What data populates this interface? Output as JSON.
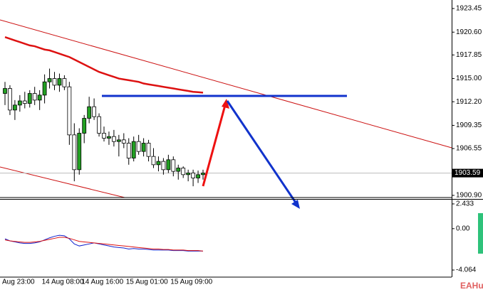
{
  "chart_data": [
    {
      "type": "candlestick",
      "categories": [
        "Aug 23:00",
        null,
        null,
        null,
        null,
        null,
        null,
        null,
        "14 Aug 08:00",
        null,
        null,
        null,
        null,
        null,
        null,
        null,
        "14 Aug 16:00",
        null,
        null,
        null,
        null,
        null,
        null,
        null,
        null,
        "15 Aug 01:00",
        null,
        null,
        null,
        null,
        null,
        null,
        null,
        null,
        "15 Aug 09:00",
        null,
        null,
        null,
        null,
        null,
        null
      ],
      "open": [
        1913.2,
        1913.8,
        1911.2,
        1911.8,
        1912.3,
        1912.0,
        1913.2,
        1912.4,
        1913.0,
        1914.6,
        1915.0,
        1914.2,
        1915.0,
        1914.0,
        1908.2,
        1904.0,
        1908.4,
        1910.2,
        1911.6,
        1910.4,
        1908.4,
        1907.8,
        1908.0,
        1907.4,
        1907.6,
        1907.2,
        1905.4,
        1907.4,
        1906.2,
        1907.2,
        1905.6,
        1904.6,
        1905.0,
        1904.0,
        1905.2,
        1903.8,
        1904.2,
        1903.4,
        1903.6,
        1903.0,
        1903.4
      ],
      "high": [
        1914.6,
        1914.2,
        1912.4,
        1913.0,
        1913.4,
        1913.6,
        1914.0,
        1913.6,
        1915.5,
        1916.2,
        1915.8,
        1915.6,
        1915.4,
        1914.6,
        1909.6,
        1909.0,
        1910.6,
        1912.8,
        1912.6,
        1910.8,
        1909.2,
        1908.6,
        1908.8,
        1908.2,
        1908.4,
        1907.8,
        1908.0,
        1908.2,
        1907.8,
        1907.6,
        1906.6,
        1905.6,
        1905.4,
        1905.8,
        1905.6,
        1904.6,
        1904.4,
        1904.0,
        1904.0,
        1903.9,
        1904.0
      ],
      "low": [
        1911.8,
        1910.6,
        1910.0,
        1911.0,
        1911.4,
        1911.5,
        1911.8,
        1911.2,
        1912.0,
        1913.8,
        1913.6,
        1913.4,
        1913.6,
        1907.0,
        1902.6,
        1903.4,
        1907.2,
        1909.6,
        1910.0,
        1908.0,
        1907.4,
        1907.0,
        1906.8,
        1905.6,
        1906.6,
        1904.6,
        1905.0,
        1905.8,
        1905.6,
        1905.0,
        1904.2,
        1903.8,
        1903.4,
        1903.6,
        1903.2,
        1902.8,
        1903.0,
        1902.6,
        1902.0,
        1902.4,
        1902.8
      ],
      "close": [
        1913.8,
        1911.2,
        1911.8,
        1912.3,
        1912.0,
        1913.2,
        1912.4,
        1913.0,
        1914.6,
        1915.0,
        1914.2,
        1915.0,
        1914.0,
        1908.2,
        1904.0,
        1908.4,
        1910.2,
        1911.6,
        1910.4,
        1908.4,
        1907.8,
        1908.0,
        1907.4,
        1907.6,
        1907.2,
        1905.4,
        1907.4,
        1906.2,
        1907.2,
        1905.6,
        1904.6,
        1905.0,
        1904.0,
        1905.2,
        1903.8,
        1904.2,
        1903.4,
        1903.6,
        1903.0,
        1903.4,
        1903.59
      ],
      "up_color": "#22a022",
      "down_color": "#ffffff",
      "moving_average": {
        "color": "#dd1111",
        "values": [
          1920.0,
          1919.8,
          1919.6,
          1919.4,
          1919.2,
          1919.0,
          1918.9,
          1918.7,
          1918.5,
          1918.4,
          1918.2,
          1918.0,
          1917.8,
          1917.6,
          1917.3,
          1917.0,
          1916.7,
          1916.4,
          1916.1,
          1915.8,
          1915.6,
          1915.4,
          1915.2,
          1915.0,
          1914.9,
          1914.8,
          1914.7,
          1914.6,
          1914.4,
          1914.3,
          1914.2,
          1914.1,
          1914.0,
          1913.9,
          1913.8,
          1913.7,
          1913.6,
          1913.5,
          1913.4,
          1913.35,
          1913.3
        ]
      },
      "current_price": 1903.59,
      "ylim": [
        1900.64,
        1924.48
      ],
      "yticks": [
        1923.45,
        {
          "value": 1920.6,
          "label": "1920.60"
        },
        1917.85,
        {
          "value": 1915,
          "label": "1915.00"
        },
        {
          "value": 1912.2,
          "label": "1912.20"
        },
        1909.35,
        1906.55,
        {
          "value": 1900.9,
          "label": "1900.90"
        }
      ]
    },
    {
      "type": "line",
      "series": [
        {
          "color": "#1122cc",
          "values": [
            -1.0,
            -1.2,
            -1.3,
            -1.4,
            -1.45,
            -1.45,
            -1.4,
            -1.3,
            -1.1,
            -0.9,
            -0.75,
            -0.65,
            -0.7,
            -1.0,
            -1.5,
            -1.7,
            -1.6,
            -1.5,
            -1.4,
            -1.5,
            -1.6,
            -1.7,
            -1.8,
            -1.85,
            -1.9,
            -2.0,
            -1.95,
            -2.0,
            -2.0,
            -2.05,
            -2.1,
            -2.1,
            -2.1,
            -2.1,
            -2.15,
            -2.15,
            -2.15,
            -2.2,
            -2.2,
            -2.2,
            -2.2
          ]
        },
        {
          "color": "#dd1111",
          "values": [
            -1.1,
            -1.2,
            -1.25,
            -1.3,
            -1.35,
            -1.35,
            -1.3,
            -1.25,
            -1.15,
            -1.05,
            -0.95,
            -0.85,
            -0.85,
            -0.95,
            -1.1,
            -1.25,
            -1.3,
            -1.35,
            -1.4,
            -1.45,
            -1.5,
            -1.55,
            -1.6,
            -1.65,
            -1.7,
            -1.75,
            -1.8,
            -1.85,
            -1.9,
            -1.95,
            -2.0,
            -2.0,
            -2.05,
            -2.05,
            -2.1,
            -2.1,
            -2.1,
            -2.15,
            -2.15,
            -2.15,
            -2.2
          ]
        }
      ],
      "ylim": [
        -4.76,
        2.85
      ],
      "yticks": [
        2.433,
        {
          "value": 0,
          "label": "0.00"
        },
        -4.064
      ]
    }
  ],
  "watermark": "EAHub"
}
